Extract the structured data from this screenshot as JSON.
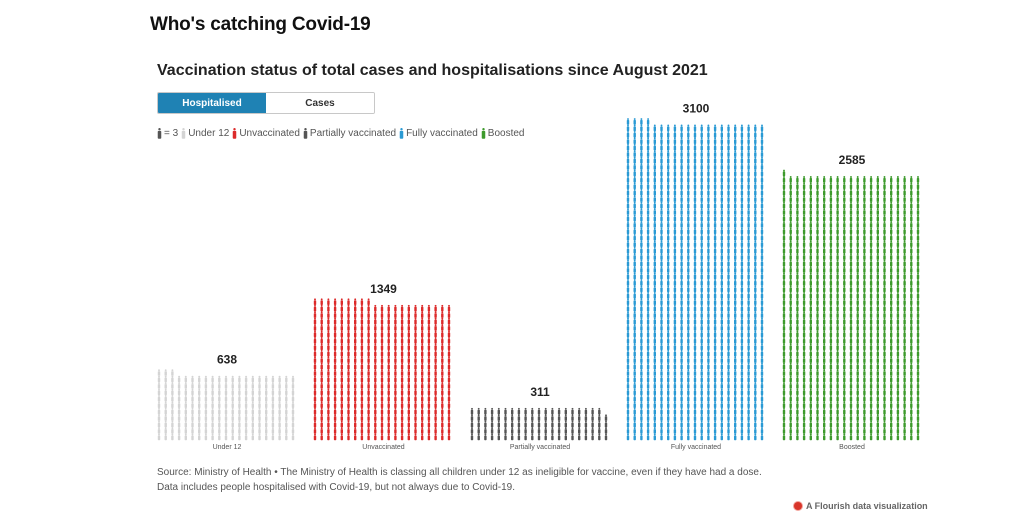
{
  "page": {
    "title": "Who's catching Covid-19"
  },
  "toggle": {
    "options": [
      "Hospitalised",
      "Cases"
    ],
    "selected": "Hospitalised"
  },
  "legend": {
    "unit_label": "= 3",
    "items": [
      {
        "label": "Under 12",
        "color": "#d4d4d4"
      },
      {
        "label": "Unvaccinated",
        "color": "#dc2a2a"
      },
      {
        "label": "Partially vaccinated",
        "color": "#555555"
      },
      {
        "label": "Fully vaccinated",
        "color": "#2a9ad4"
      },
      {
        "label": "Boosted",
        "color": "#3d9a2c"
      }
    ]
  },
  "chart_data": {
    "type": "bar",
    "title": "Vaccination status of total cases and hospitalisations since August 2021",
    "units_per_icon": 3,
    "categories": [
      "Under 12",
      "Unvaccinated",
      "Partially vaccinated",
      "Fully vaccinated",
      "Boosted"
    ],
    "values": [
      638,
      1349,
      311,
      3100,
      2585
    ],
    "colors": [
      "#d4d4d4",
      "#dc2a2a",
      "#555555",
      "#2a9ad4",
      "#3d9a2c"
    ]
  },
  "footnote": {
    "line1": "Source: Ministry of Health • The Ministry of Health is classing all children under 12 as ineligible for vaccine, even if they have had a dose.",
    "line2": "Data includes people hospitalised with Covid-19, but not always due to Covid-19."
  },
  "credit": {
    "text": "A Flourish data visualization"
  }
}
